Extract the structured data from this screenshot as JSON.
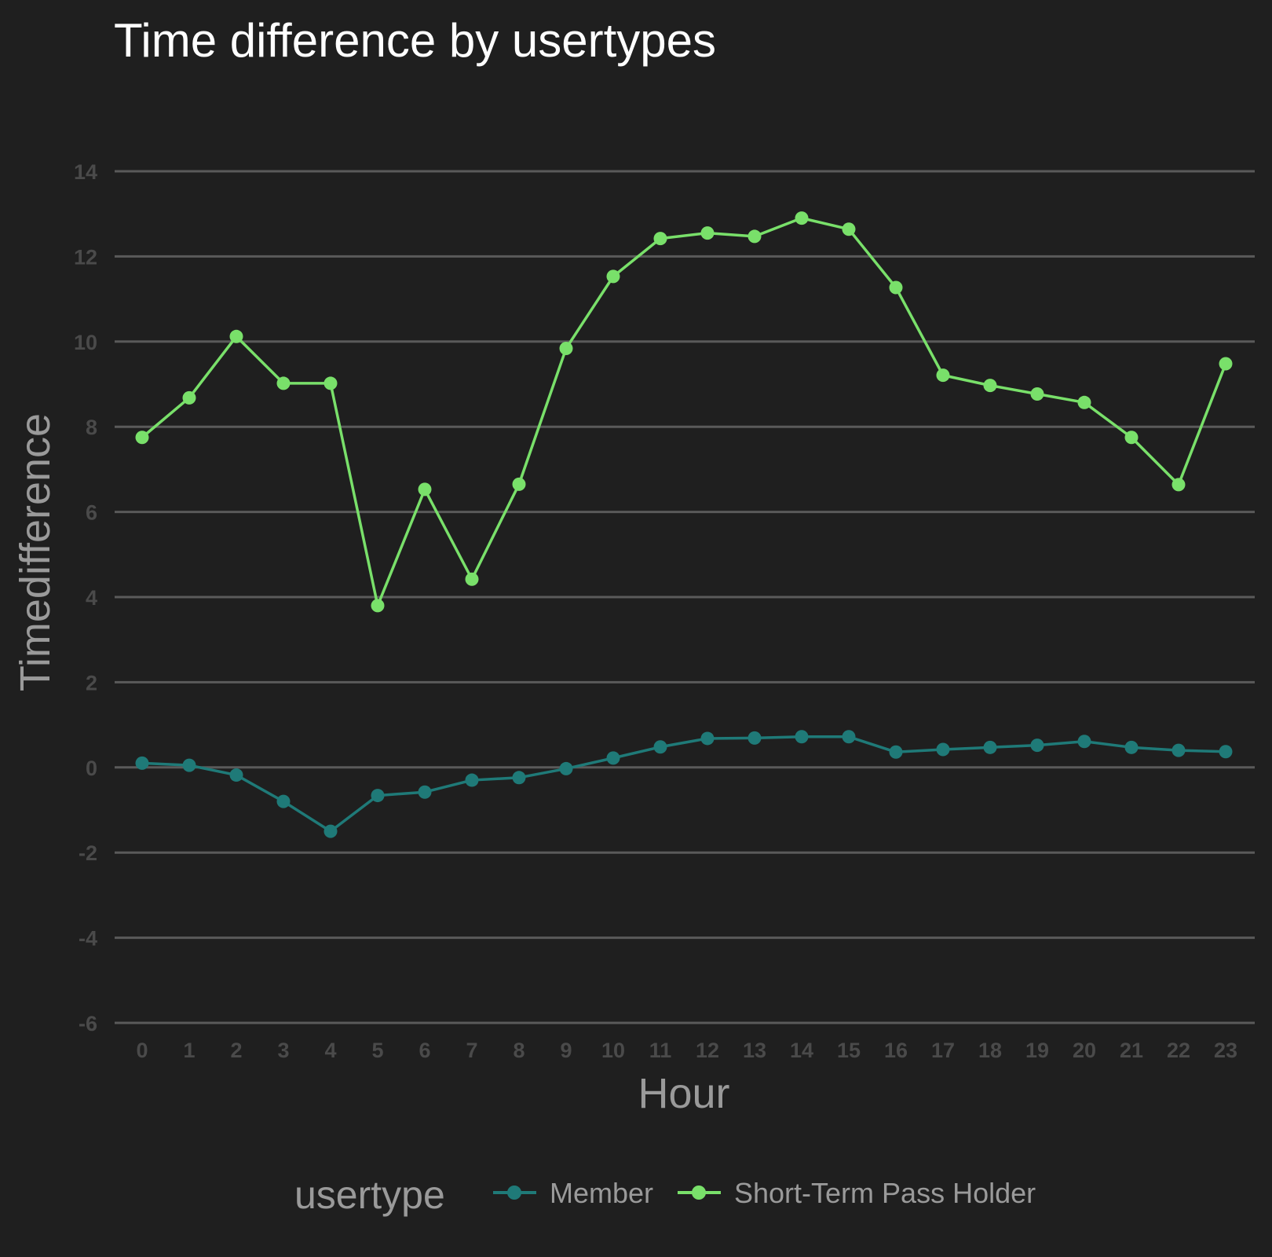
{
  "chart_data": {
    "type": "line",
    "title": "Time difference by usertypes",
    "xlabel": "Hour",
    "ylabel": "Timedifference",
    "x": [
      0,
      1,
      2,
      3,
      4,
      5,
      6,
      7,
      8,
      9,
      10,
      11,
      12,
      13,
      14,
      15,
      16,
      17,
      18,
      19,
      20,
      21,
      22,
      23
    ],
    "x_tick_labels": [
      "0",
      "1",
      "2",
      "3",
      "4",
      "5",
      "6",
      "7",
      "8",
      "9",
      "10",
      "11",
      "12",
      "13",
      "14",
      "15",
      "16",
      "17",
      "18",
      "19",
      "20",
      "21",
      "22",
      "23"
    ],
    "ylim": [
      -6,
      14
    ],
    "y_ticks": [
      -6,
      -4,
      -2,
      0,
      2,
      4,
      6,
      8,
      10,
      12,
      14
    ],
    "y_tick_labels": [
      "-6",
      "-4",
      "-2",
      "0",
      "2",
      "4",
      "6",
      "8",
      "10",
      "12",
      "14"
    ],
    "grid": true,
    "legend": {
      "title": "usertype",
      "position": "bottom"
    },
    "series": [
      {
        "name": "Member",
        "color": "#1f7a78",
        "values": [
          0.1,
          0.05,
          -0.18,
          -0.8,
          -1.5,
          -0.66,
          -0.58,
          -0.3,
          -0.24,
          -0.03,
          0.22,
          0.48,
          0.68,
          0.69,
          0.72,
          0.72,
          0.36,
          0.42,
          0.47,
          0.52,
          0.61,
          0.47,
          0.4,
          0.37
        ]
      },
      {
        "name": "Short-Term Pass Holder",
        "color": "#79e06a",
        "values": [
          7.75,
          8.68,
          10.12,
          9.02,
          9.02,
          3.8,
          6.53,
          4.42,
          6.65,
          9.84,
          11.53,
          12.42,
          12.55,
          12.47,
          12.9,
          12.64,
          11.27,
          9.21,
          8.97,
          8.77,
          8.57,
          7.75,
          6.64,
          9.48
        ]
      }
    ]
  }
}
